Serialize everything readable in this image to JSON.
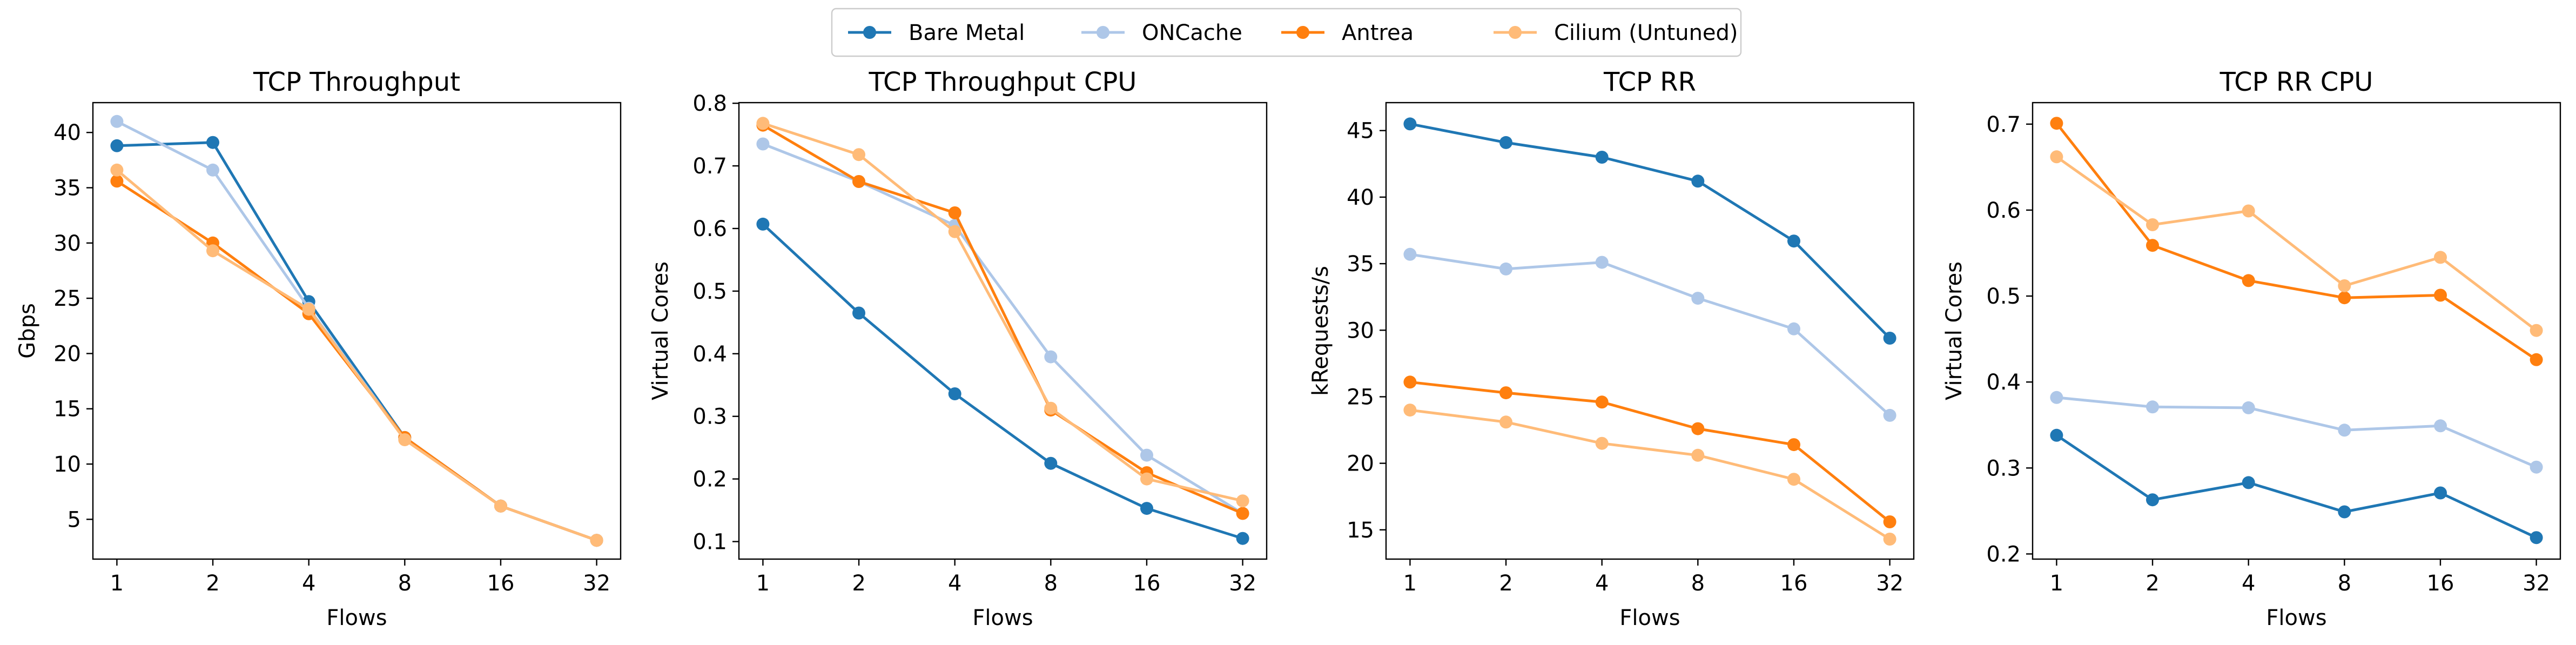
{
  "legend": {
    "placement": "top-center",
    "entries": [
      {
        "name": "Bare Metal",
        "color": "#1f77b4"
      },
      {
        "name": "ONCache",
        "color": "#aec7e8"
      },
      {
        "name": "Antrea",
        "color": "#ff7f0e"
      },
      {
        "name": "Cilium (Untuned)",
        "color": "#ffbb78"
      }
    ]
  },
  "chart_data": [
    {
      "type": "line",
      "title": "TCP Throughput",
      "xlabel": "Flows",
      "ylabel": "Gbps",
      "categories": [
        "1",
        "2",
        "4",
        "8",
        "16",
        "32"
      ],
      "ylim": [
        1.4,
        42.7
      ],
      "yticks": [
        5,
        10,
        15,
        20,
        25,
        30,
        35,
        40
      ],
      "grid": false,
      "series": [
        {
          "name": "Bare Metal",
          "color": "#1f77b4",
          "values": [
            38.8,
            39.1,
            24.7,
            12.4,
            6.2,
            3.1
          ]
        },
        {
          "name": "ONCache",
          "color": "#aec7e8",
          "values": [
            41.0,
            36.6,
            24.1,
            12.3,
            6.2,
            3.1
          ]
        },
        {
          "name": "Antrea",
          "color": "#ff7f0e",
          "values": [
            35.6,
            30.0,
            23.6,
            12.4,
            6.2,
            3.1
          ]
        },
        {
          "name": "Cilium (Untuned)",
          "color": "#ffbb78",
          "values": [
            36.6,
            29.3,
            24.0,
            12.2,
            6.2,
            3.1
          ]
        }
      ]
    },
    {
      "type": "line",
      "title": "TCP Throughput CPU",
      "xlabel": "Flows",
      "ylabel": "Virtual Cores",
      "categories": [
        "1",
        "2",
        "4",
        "8",
        "16",
        "32"
      ],
      "ylim": [
        0.072,
        0.801
      ],
      "yticks": [
        0.1,
        0.2,
        0.3,
        0.4,
        0.5,
        0.6,
        0.7,
        0.8
      ],
      "grid": false,
      "series": [
        {
          "name": "Bare Metal",
          "color": "#1f77b4",
          "values": [
            0.607,
            0.465,
            0.336,
            0.225,
            0.153,
            0.105
          ]
        },
        {
          "name": "ONCache",
          "color": "#aec7e8",
          "values": [
            0.735,
            0.675,
            0.605,
            0.395,
            0.238,
            0.145
          ]
        },
        {
          "name": "Antrea",
          "color": "#ff7f0e",
          "values": [
            0.765,
            0.675,
            0.625,
            0.31,
            0.21,
            0.145
          ]
        },
        {
          "name": "Cilium (Untuned)",
          "color": "#ffbb78",
          "values": [
            0.768,
            0.718,
            0.595,
            0.313,
            0.2,
            0.165
          ]
        }
      ]
    },
    {
      "type": "line",
      "title": "TCP RR",
      "xlabel": "Flows",
      "ylabel": "kRequests/s",
      "categories": [
        "1",
        "2",
        "4",
        "8",
        "16",
        "32"
      ],
      "ylim": [
        12.8,
        47.1
      ],
      "yticks": [
        15,
        20,
        25,
        30,
        35,
        40,
        45
      ],
      "grid": false,
      "series": [
        {
          "name": "Bare Metal",
          "color": "#1f77b4",
          "values": [
            45.5,
            44.1,
            43.0,
            41.2,
            36.7,
            29.4
          ]
        },
        {
          "name": "ONCache",
          "color": "#aec7e8",
          "values": [
            35.7,
            34.6,
            35.1,
            32.4,
            30.1,
            23.6
          ]
        },
        {
          "name": "Antrea",
          "color": "#ff7f0e",
          "values": [
            26.1,
            25.3,
            24.6,
            22.6,
            21.4,
            15.6
          ]
        },
        {
          "name": "Cilium (Untuned)",
          "color": "#ffbb78",
          "values": [
            24.0,
            23.1,
            21.5,
            20.6,
            18.8,
            14.3
          ]
        }
      ]
    },
    {
      "type": "line",
      "title": "TCP RR CPU",
      "xlabel": "Flows",
      "ylabel": "Virtual Cores",
      "categories": [
        "1",
        "2",
        "4",
        "8",
        "16",
        "32"
      ],
      "ylim": [
        0.194,
        0.725
      ],
      "yticks": [
        0.2,
        0.3,
        0.4,
        0.5,
        0.6,
        0.7
      ],
      "grid": false,
      "series": [
        {
          "name": "Bare Metal",
          "color": "#1f77b4",
          "values": [
            0.338,
            0.263,
            0.283,
            0.249,
            0.271,
            0.219
          ]
        },
        {
          "name": "ONCache",
          "color": "#aec7e8",
          "values": [
            0.382,
            0.371,
            0.37,
            0.344,
            0.349,
            0.301
          ]
        },
        {
          "name": "Antrea",
          "color": "#ff7f0e",
          "values": [
            0.701,
            0.559,
            0.518,
            0.498,
            0.501,
            0.426
          ]
        },
        {
          "name": "Cilium (Untuned)",
          "color": "#ffbb78",
          "values": [
            0.662,
            0.583,
            0.599,
            0.512,
            0.545,
            0.46
          ]
        }
      ]
    }
  ]
}
